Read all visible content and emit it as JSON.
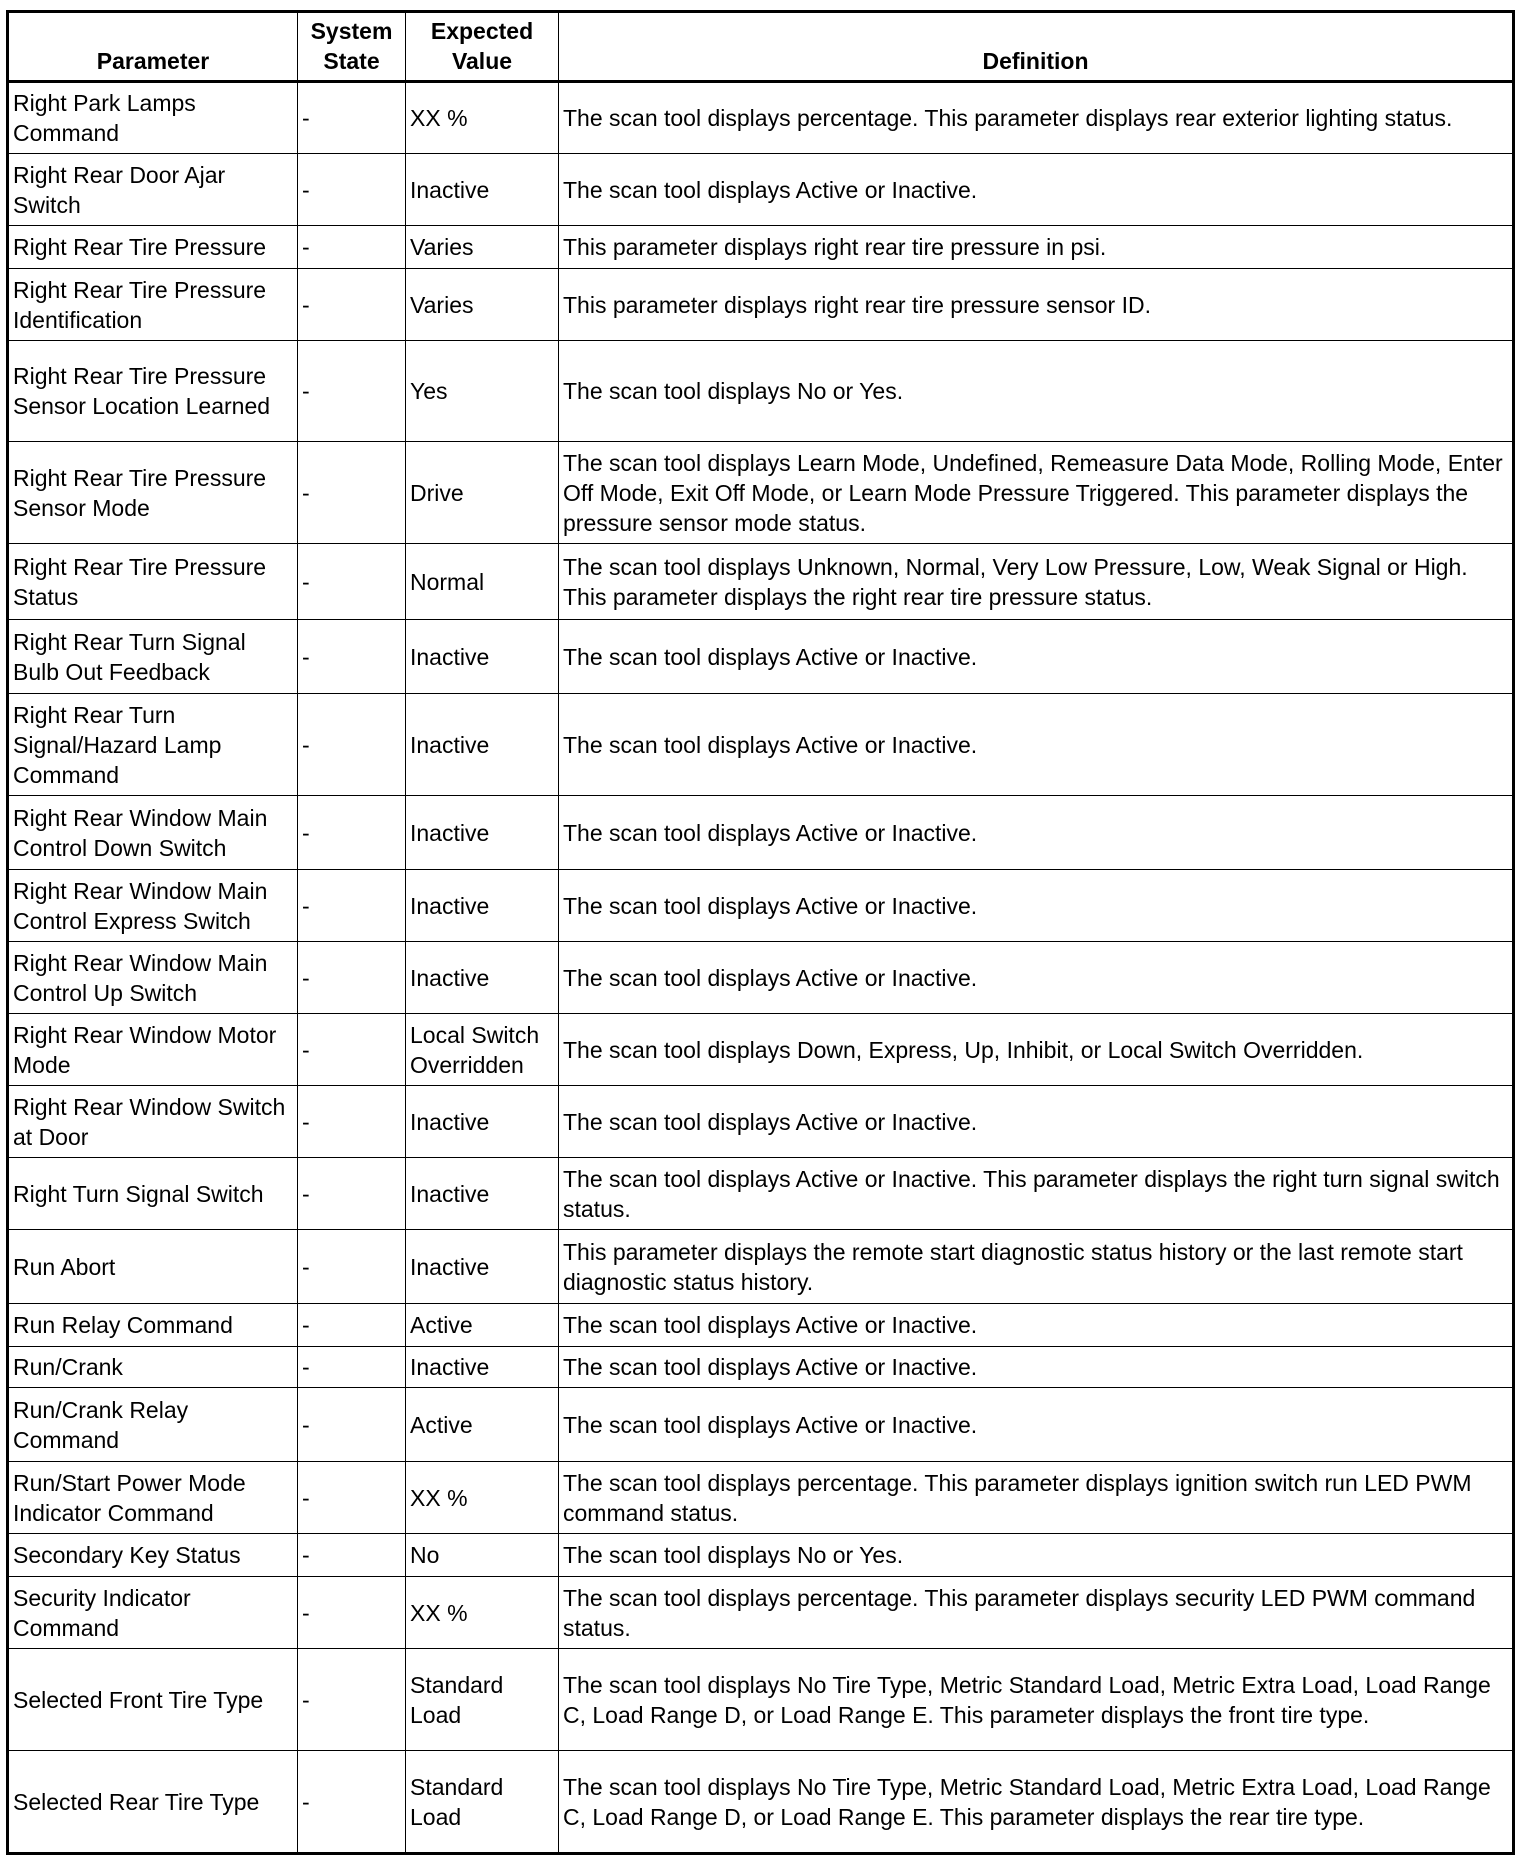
{
  "headers": {
    "parameter": "Parameter",
    "system_state": "System State",
    "expected_value": "Expected Value",
    "definition": "Definition"
  },
  "rows": [
    {
      "parameter": "Right Park Lamps Command",
      "state": "-",
      "value": "XX %",
      "definition": "The scan tool displays percentage. This parameter displays rear exterior lighting status."
    },
    {
      "parameter": "Right Rear Door Ajar Switch",
      "state": "-",
      "value": "Inactive",
      "definition": "The scan tool displays Active or Inactive."
    },
    {
      "parameter": "Right Rear Tire Pressure",
      "state": "-",
      "value": "Varies",
      "definition": "This parameter displays right rear tire pressure in psi."
    },
    {
      "parameter": "Right Rear Tire Pressure Identification",
      "state": "-",
      "value": "Varies",
      "definition": "This parameter displays right rear tire pressure sensor ID."
    },
    {
      "parameter": "Right Rear Tire Pressure Sensor Location Learned",
      "state": "-",
      "value": "Yes",
      "definition": "The scan tool displays No or Yes."
    },
    {
      "parameter": "Right Rear Tire Pressure Sensor Mode",
      "state": "-",
      "value": "Drive",
      "definition": "The scan tool displays Learn Mode, Undefined, Remeasure Data Mode, Rolling Mode, Enter Off Mode, Exit Off Mode, or Learn Mode Pressure Triggered. This parameter displays the pressure sensor mode status."
    },
    {
      "parameter": "Right Rear Tire Pressure Status",
      "state": "-",
      "value": "Normal",
      "definition": "The scan tool displays Unknown, Normal, Very Low Pressure, Low, Weak Signal or High. This parameter displays the right rear tire pressure status."
    },
    {
      "parameter": "Right Rear Turn Signal Bulb Out Feedback",
      "state": "-",
      "value": "Inactive",
      "definition": "The scan tool displays Active or Inactive."
    },
    {
      "parameter": "Right Rear Turn Signal/Hazard Lamp Command",
      "state": "-",
      "value": "Inactive",
      "definition": "The scan tool displays Active or Inactive."
    },
    {
      "parameter": "Right Rear Window Main Control Down Switch",
      "state": "-",
      "value": "Inactive",
      "definition": "The scan tool displays Active or Inactive."
    },
    {
      "parameter": "Right Rear Window Main Control Express Switch",
      "state": "-",
      "value": "Inactive",
      "definition": "The scan tool displays Active or Inactive."
    },
    {
      "parameter": "Right Rear Window Main Control Up Switch",
      "state": "-",
      "value": "Inactive",
      "definition": "The scan tool displays Active or Inactive."
    },
    {
      "parameter": "Right Rear Window Motor Mode",
      "state": "-",
      "value": "Local Switch Overridden",
      "definition": "The scan tool displays Down, Express, Up, Inhibit, or Local Switch Overridden."
    },
    {
      "parameter": "Right Rear Window Switch at Door",
      "state": "-",
      "value": "Inactive",
      "definition": "The scan tool displays Active or Inactive."
    },
    {
      "parameter": "Right Turn Signal Switch",
      "state": "-",
      "value": "Inactive",
      "definition": "The scan tool displays Active or Inactive. This parameter displays the right turn signal switch status."
    },
    {
      "parameter": "Run Abort",
      "state": "-",
      "value": "Inactive",
      "definition": "This parameter displays the remote start diagnostic status history or the last remote start diagnostic status history."
    },
    {
      "parameter": "Run Relay Command",
      "state": "-",
      "value": "Active",
      "definition": "The scan tool displays Active or Inactive."
    },
    {
      "parameter": "Run/Crank",
      "state": "-",
      "value": "Inactive",
      "definition": "The scan tool displays Active or Inactive."
    },
    {
      "parameter": "Run/Crank Relay Command",
      "state": "-",
      "value": "Active",
      "definition": "The scan tool displays Active or Inactive."
    },
    {
      "parameter": "Run/Start Power Mode Indicator Command",
      "state": "-",
      "value": "XX %",
      "definition": "The scan tool displays percentage. This parameter displays ignition switch run LED PWM command status."
    },
    {
      "parameter": "Secondary Key Status",
      "state": "-",
      "value": "No",
      "definition": "The scan tool displays No or Yes."
    },
    {
      "parameter": "Security Indicator Command",
      "state": "-",
      "value": "XX %",
      "definition": "The scan tool displays percentage. This parameter displays security LED PWM command status."
    },
    {
      "parameter": "Selected Front Tire Type",
      "state": "-",
      "value": "Standard Load",
      "definition": "The scan tool displays No Tire Type, Metric Standard Load, Metric Extra Load, Load Range C, Load Range D, or Load Range E. This parameter displays the front tire type."
    },
    {
      "parameter": "Selected Rear Tire Type",
      "state": "-",
      "value": "Standard Load",
      "definition": "The scan tool displays No Tire Type, Metric Standard Load, Metric Extra Load, Load Range C, Load Range D, or Load Range E. This parameter displays the rear tire type."
    }
  ]
}
